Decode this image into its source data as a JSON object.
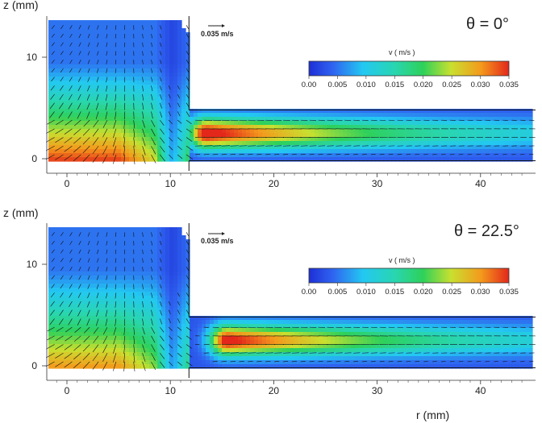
{
  "chart_data": [
    {
      "type": "heatmap",
      "panel": "top",
      "title": "θ = 0°",
      "ylabel": "z (mm)",
      "xlabel": "",
      "xticks": [
        0,
        10,
        20,
        30,
        40
      ],
      "yticks": [
        0,
        10
      ],
      "xlim": [
        -1.8,
        45.2
      ],
      "ylim": [
        -1.3,
        13.6
      ],
      "reference_vector_label": "0.035 m/s",
      "reference_vector_value": 0.035,
      "colorbar": {
        "label": "v  ( m/s )",
        "range": [
          0.0,
          0.035
        ],
        "ticks": [
          "0.00",
          "0.005",
          "0.010",
          "0.015",
          "0.020",
          "0.025",
          "0.030",
          "0.035"
        ]
      },
      "features": [
        {
          "type": "radial_jet",
          "r_peak": 13.5,
          "z": 2.5,
          "v_peak": 0.035
        },
        {
          "type": "vertical_inflow",
          "r_range": [
            0,
            6
          ],
          "v_bottom": 0.03
        }
      ]
    },
    {
      "type": "heatmap",
      "panel": "bottom",
      "title": "θ = 22.5°",
      "ylabel": "z (mm)",
      "xlabel": "r (mm)",
      "xticks": [
        0,
        10,
        20,
        30,
        40
      ],
      "yticks": [
        0,
        10
      ],
      "xlim": [
        -1.8,
        45.2
      ],
      "ylim": [
        -1.3,
        13.6
      ],
      "reference_vector_label": "0.035 m/s",
      "reference_vector_value": 0.035,
      "colorbar": {
        "label": "v  ( m/s )",
        "range": [
          0.0,
          0.035
        ],
        "ticks": [
          "0.00",
          "0.005",
          "0.010",
          "0.015",
          "0.020",
          "0.025",
          "0.030",
          "0.035"
        ]
      },
      "features": [
        {
          "type": "radial_jet",
          "r_peak": 15.5,
          "z": 2.5,
          "v_peak": 0.034
        },
        {
          "type": "vertical_inflow",
          "r_range": [
            0,
            6
          ],
          "v_bottom": 0.026
        }
      ]
    }
  ]
}
